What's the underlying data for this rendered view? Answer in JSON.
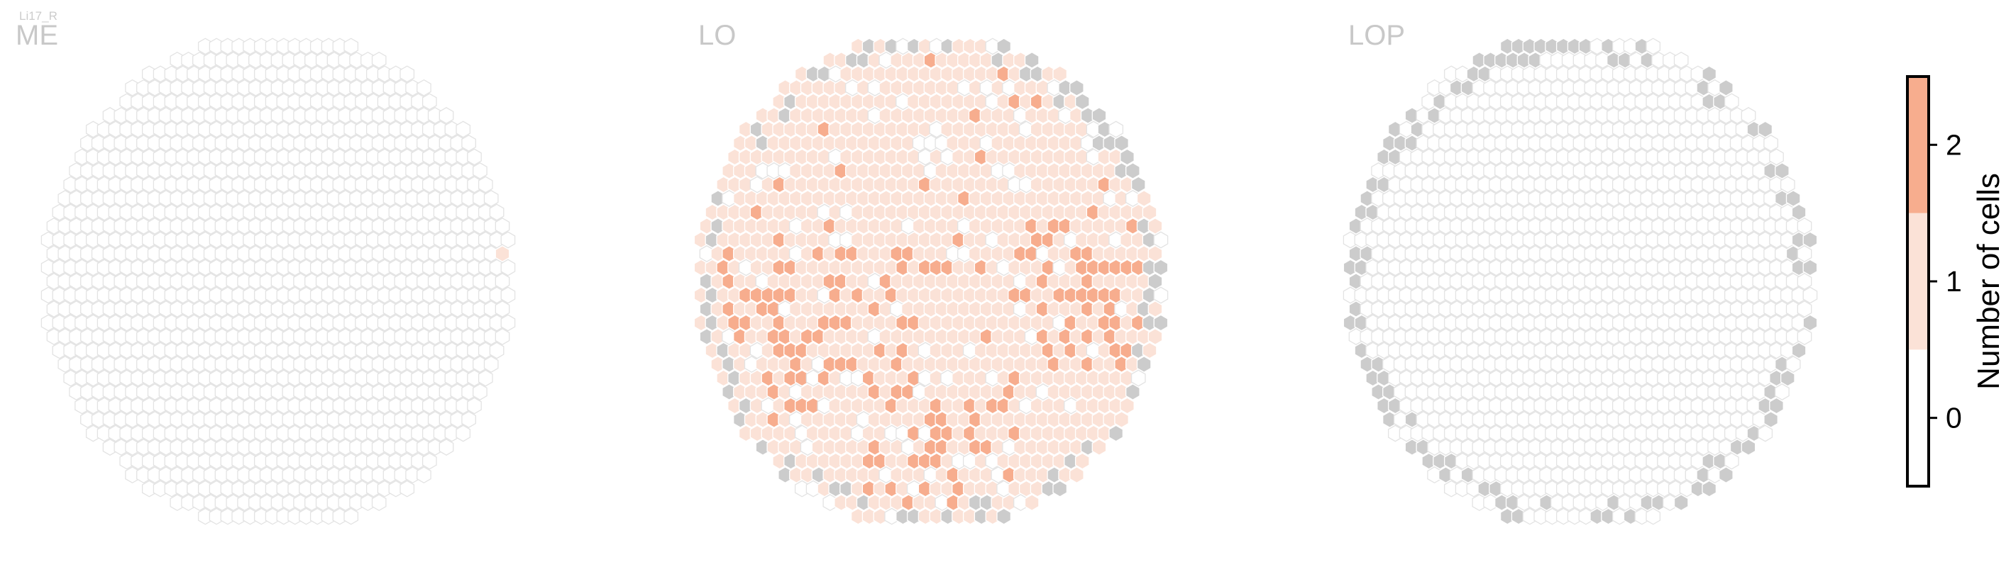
{
  "cell_type": "Li17_R",
  "colors": {
    "zero": "#ffffff",
    "one": "#fbe2d7",
    "two": "#f7ad8e",
    "missing": "#cccccc",
    "empty_stroke": "#e3e3e3",
    "filled_stroke": "#ffffff",
    "title": "#c8c8c8"
  },
  "chart_data": [
    {
      "type": "heatmap",
      "subtype": "hexagonal eye map",
      "title": "ME",
      "counts_present": [
        0,
        1
      ],
      "approx_column_count": 780,
      "cells_with_1": 2,
      "cells_with_2": 0,
      "missing_columns": 0,
      "summary": "Almost all columns have 0 cells; two columns near the right edge have 1 cell."
    },
    {
      "type": "heatmap",
      "subtype": "hexagonal eye map",
      "title": "LO",
      "counts_present": [
        0,
        1,
        2
      ],
      "approx_column_count": 780,
      "cells_with_2": 110,
      "missing_columns": 30,
      "summary": "Most columns have 1 cell; about 110 columns, concentrated in the left and lower regions, have 2 cells; scattered columns have 0; grey columns along the border are not mapped."
    },
    {
      "type": "heatmap",
      "subtype": "hexagonal eye map",
      "title": "LOP",
      "counts_present": [
        0
      ],
      "approx_column_count": 780,
      "cells_with_1": 0,
      "cells_with_2": 0,
      "missing_columns": 70,
      "summary": "All mapped columns have 0 cells; grey columns around the border are not mapped."
    }
  ],
  "colorbar": {
    "label": "Number of cells",
    "ticks": [
      "0",
      "1",
      "2"
    ],
    "range": [
      -0.5,
      2.5
    ],
    "bands": [
      {
        "from": -0.5,
        "to": 0.5,
        "color": "#ffffff"
      },
      {
        "from": 0.5,
        "to": 1.5,
        "color": "#fbe2d7"
      },
      {
        "from": 1.5,
        "to": 2.5,
        "color": "#f7ad8e"
      }
    ]
  }
}
